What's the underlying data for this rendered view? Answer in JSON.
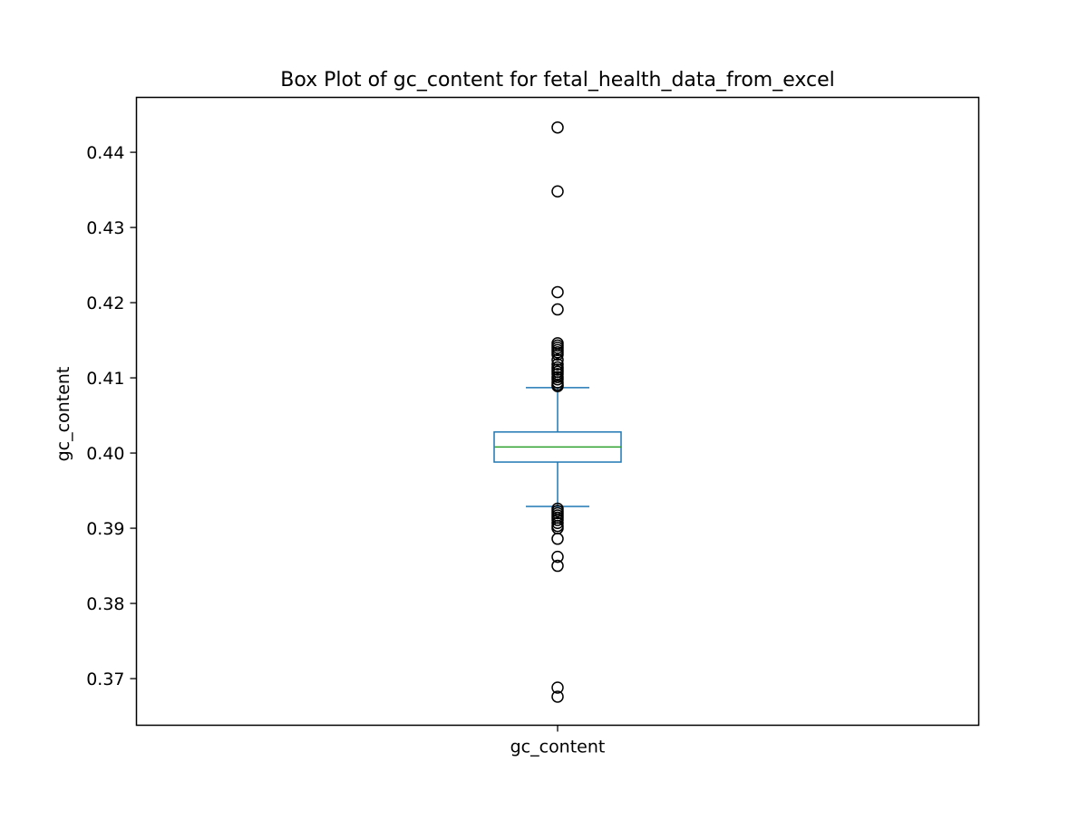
{
  "chart_data": {
    "type": "box",
    "title": "Box Plot of gc_content for fetal_health_data_from_excel",
    "xlabel": "",
    "ylabel": "gc_content",
    "categories": [
      "gc_content"
    ],
    "ylim": [
      0.3638,
      0.4473
    ],
    "yticks": [
      0.37,
      0.38,
      0.39,
      0.4,
      0.41,
      0.42,
      0.43,
      0.44
    ],
    "ytick_labels": [
      "0.37",
      "0.38",
      "0.39",
      "0.40",
      "0.41",
      "0.42",
      "0.43",
      "0.44"
    ],
    "grid": false,
    "legend": "none",
    "colors": {
      "box": "#1f77b4",
      "median": "#2ca02c",
      "flier": "#000000",
      "axes": "#000000"
    },
    "series": [
      {
        "whisker_low": 0.3929,
        "q1": 0.3988,
        "median": 0.4008,
        "q3": 0.4028,
        "whisker_high": 0.4087,
        "outliers": [
          0.4433,
          0.4348,
          0.4214,
          0.4191,
          0.4146,
          0.4143,
          0.414,
          0.4137,
          0.4134,
          0.4131,
          0.4124,
          0.4118,
          0.4114,
          0.4111,
          0.4108,
          0.4105,
          0.4101,
          0.4098,
          0.4094,
          0.4091,
          0.4089,
          0.3926,
          0.3923,
          0.392,
          0.3917,
          0.3914,
          0.3911,
          0.3907,
          0.3903,
          0.39,
          0.3886,
          0.3862,
          0.385,
          0.3688,
          0.3676
        ]
      }
    ]
  }
}
